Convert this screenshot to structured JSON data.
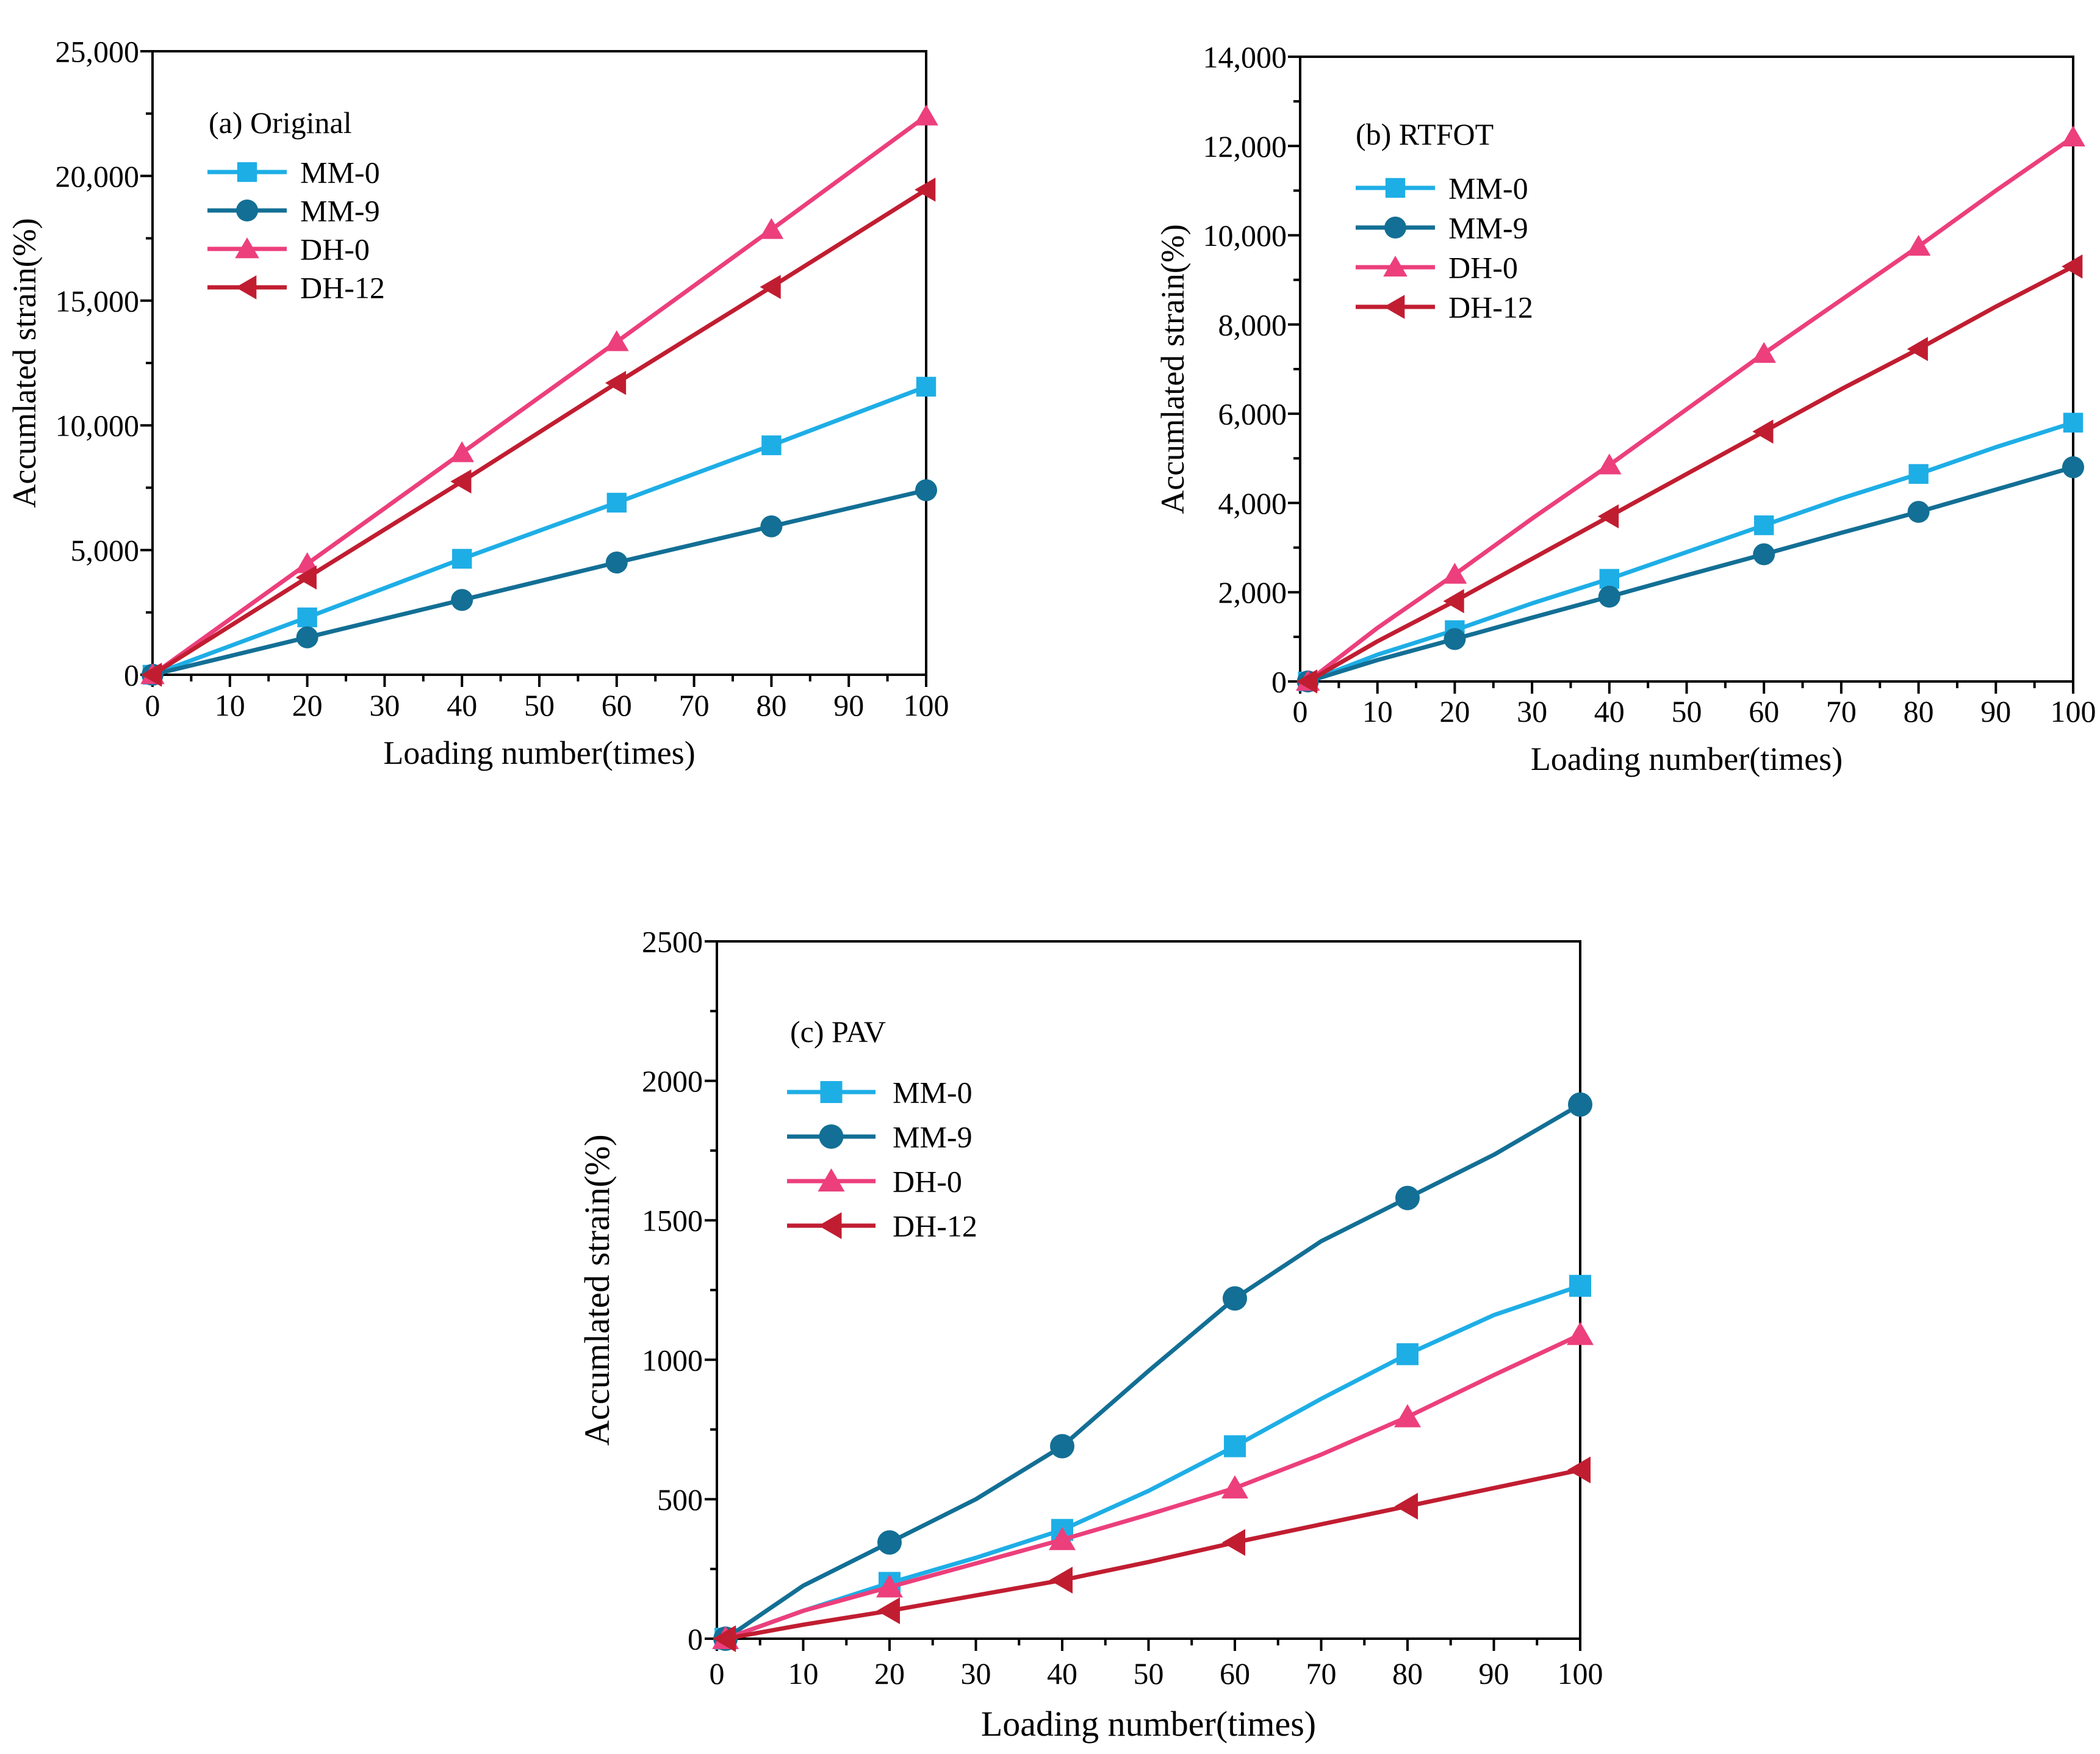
{
  "colors": {
    "MM-0": "#1eaee6",
    "MM-9": "#136f95",
    "DH-0": "#ec3f7c",
    "DH-12": "#c11d31"
  },
  "chart_data": [
    {
      "type": "line",
      "panel_label": "(a) Original",
      "xlabel": "Loading number(times)",
      "ylabel": "Accumlated strain(%)",
      "xlim": [
        0,
        100
      ],
      "ylim": [
        0,
        25000
      ],
      "xticks": [
        0,
        10,
        20,
        30,
        40,
        50,
        60,
        70,
        80,
        90,
        100
      ],
      "yticks": [
        0,
        5000,
        10000,
        15000,
        20000,
        25000
      ],
      "ytick_labels": [
        "0",
        "5,000",
        "10,000",
        "15,000",
        "20,000",
        "25,000"
      ],
      "legend_position": "upper-left",
      "series": [
        {
          "name": "MM-0",
          "marker": "square",
          "line_x": [
            0,
            20,
            40,
            60,
            80,
            100
          ],
          "line_y": [
            0,
            2300,
            4650,
            6900,
            9200,
            11550
          ],
          "marker_x": [
            0,
            20,
            40,
            60,
            80,
            100
          ],
          "marker_y": [
            0,
            2300,
            4650,
            6900,
            9200,
            11550
          ]
        },
        {
          "name": "MM-9",
          "marker": "circle",
          "line_x": [
            0,
            20,
            40,
            60,
            80,
            100
          ],
          "line_y": [
            0,
            1500,
            3000,
            4500,
            5950,
            7400
          ],
          "marker_x": [
            0,
            20,
            40,
            60,
            80,
            100
          ],
          "marker_y": [
            0,
            1500,
            3000,
            4500,
            5950,
            7400
          ]
        },
        {
          "name": "DH-0",
          "marker": "triangle-up",
          "line_x": [
            0,
            20,
            40,
            60,
            80,
            100
          ],
          "line_y": [
            0,
            4450,
            8900,
            13350,
            17850,
            22400
          ],
          "marker_x": [
            0,
            20,
            40,
            60,
            80,
            100
          ],
          "marker_y": [
            0,
            4450,
            8900,
            13350,
            17850,
            22400
          ]
        },
        {
          "name": "DH-12",
          "marker": "triangle-left",
          "line_x": [
            0,
            20,
            40,
            60,
            80,
            100
          ],
          "line_y": [
            0,
            3900,
            7750,
            11700,
            15550,
            19450
          ],
          "marker_x": [
            0,
            20,
            40,
            60,
            80,
            100
          ],
          "marker_y": [
            0,
            3900,
            7750,
            11700,
            15550,
            19450
          ]
        }
      ]
    },
    {
      "type": "line",
      "panel_label": "(b) RTFOT",
      "xlabel": "Loading number(times)",
      "ylabel": "Accumlated strain(%)",
      "xlim": [
        0,
        100
      ],
      "ylim": [
        0,
        14000
      ],
      "xticks": [
        0,
        10,
        20,
        30,
        40,
        50,
        60,
        70,
        80,
        90,
        100
      ],
      "yticks": [
        0,
        2000,
        4000,
        6000,
        8000,
        10000,
        12000,
        14000
      ],
      "ytick_labels": [
        "0",
        "2,000",
        "4,000",
        "6,000",
        "8,000",
        "10,000",
        "12,000",
        "14,000"
      ],
      "legend_position": "upper-left",
      "series": [
        {
          "name": "MM-0",
          "marker": "square",
          "line_x": [
            1,
            10,
            20,
            30,
            40,
            50,
            60,
            70,
            80,
            90,
            100
          ],
          "line_y": [
            0,
            600,
            1150,
            1750,
            2300,
            2900,
            3500,
            4100,
            4650,
            5250,
            5800
          ],
          "marker_x": [
            1,
            20,
            40,
            60,
            80,
            100
          ],
          "marker_y": [
            0,
            1150,
            2300,
            3500,
            4650,
            5800
          ]
        },
        {
          "name": "MM-9",
          "marker": "circle",
          "line_x": [
            1,
            10,
            20,
            30,
            40,
            50,
            60,
            70,
            80,
            90,
            100
          ],
          "line_y": [
            0,
            480,
            950,
            1430,
            1900,
            2380,
            2850,
            3330,
            3800,
            4300,
            4800
          ],
          "marker_x": [
            1,
            20,
            40,
            60,
            80,
            100
          ],
          "marker_y": [
            0,
            950,
            1900,
            2850,
            3800,
            4800
          ]
        },
        {
          "name": "DH-0",
          "marker": "triangle-up",
          "line_x": [
            1,
            10,
            20,
            30,
            40,
            50,
            60,
            70,
            80,
            90,
            100
          ],
          "line_y": [
            0,
            1200,
            2400,
            3650,
            4850,
            6100,
            7350,
            8550,
            9750,
            11000,
            12200
          ],
          "marker_x": [
            1,
            20,
            40,
            60,
            80,
            100
          ],
          "marker_y": [
            0,
            2400,
            4850,
            7350,
            9750,
            12200
          ]
        },
        {
          "name": "DH-12",
          "marker": "triangle-left",
          "line_x": [
            1,
            10,
            20,
            30,
            40,
            50,
            60,
            70,
            80,
            90,
            100
          ],
          "line_y": [
            0,
            900,
            1800,
            2750,
            3700,
            4650,
            5600,
            6550,
            7450,
            8400,
            9300
          ],
          "marker_x": [
            1,
            20,
            40,
            60,
            80,
            100
          ],
          "marker_y": [
            0,
            1800,
            3700,
            5600,
            7450,
            9300
          ]
        }
      ]
    },
    {
      "type": "line",
      "panel_label": "(c) PAV",
      "xlabel": "Loading number(times)",
      "ylabel": "Accumlated strain(%)",
      "xlim": [
        0,
        100
      ],
      "ylim": [
        0,
        2500
      ],
      "xticks": [
        0,
        10,
        20,
        30,
        40,
        50,
        60,
        70,
        80,
        90,
        100
      ],
      "yticks": [
        0,
        500,
        1000,
        1500,
        2000,
        2500
      ],
      "ytick_labels": [
        "0",
        "500",
        "1000",
        "1500",
        "2000",
        "2500"
      ],
      "legend_position": "upper-left",
      "series": [
        {
          "name": "MM-0",
          "marker": "square",
          "line_x": [
            1,
            10,
            20,
            30,
            40,
            50,
            60,
            70,
            80,
            90,
            100
          ],
          "line_y": [
            0,
            100,
            200,
            290,
            390,
            530,
            690,
            860,
            1020,
            1160,
            1265
          ],
          "marker_x": [
            1,
            20,
            40,
            60,
            80,
            100
          ],
          "marker_y": [
            0,
            200,
            390,
            690,
            1020,
            1265
          ]
        },
        {
          "name": "MM-9",
          "marker": "circle",
          "line_x": [
            1,
            10,
            20,
            30,
            40,
            50,
            60,
            70,
            80,
            90,
            100
          ],
          "line_y": [
            0,
            190,
            345,
            500,
            690,
            960,
            1220,
            1425,
            1580,
            1735,
            1915
          ],
          "marker_x": [
            1,
            20,
            40,
            60,
            80,
            100
          ],
          "marker_y": [
            0,
            345,
            690,
            1220,
            1580,
            1915
          ]
        },
        {
          "name": "DH-0",
          "marker": "triangle-up",
          "line_x": [
            1,
            10,
            20,
            30,
            40,
            50,
            60,
            70,
            80,
            90,
            100
          ],
          "line_y": [
            0,
            100,
            185,
            270,
            355,
            445,
            540,
            660,
            795,
            945,
            1090
          ],
          "marker_x": [
            1,
            20,
            40,
            60,
            80,
            100
          ],
          "marker_y": [
            0,
            185,
            355,
            540,
            795,
            1090
          ]
        },
        {
          "name": "DH-12",
          "marker": "triangle-left",
          "line_x": [
            1,
            10,
            20,
            30,
            40,
            50,
            60,
            70,
            80,
            90,
            100
          ],
          "line_y": [
            0,
            50,
            100,
            155,
            210,
            275,
            345,
            410,
            475,
            540,
            605
          ],
          "marker_x": [
            1,
            20,
            40,
            60,
            80,
            100
          ],
          "marker_y": [
            0,
            100,
            210,
            345,
            475,
            605
          ]
        }
      ]
    }
  ]
}
